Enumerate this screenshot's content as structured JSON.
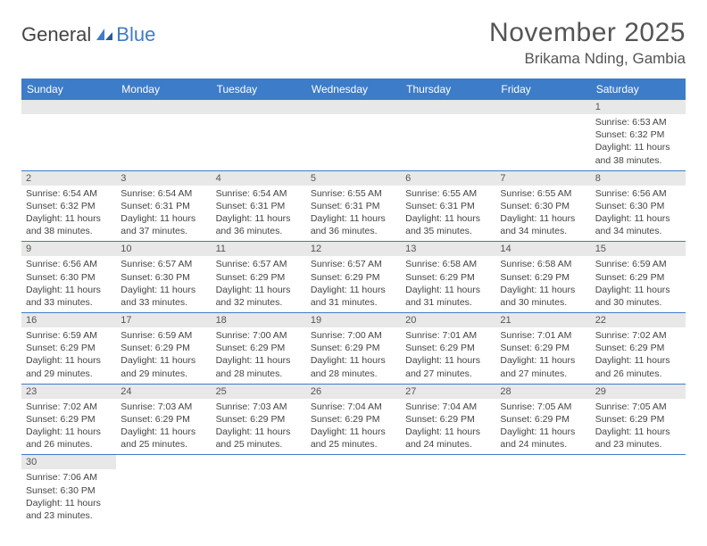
{
  "logo": {
    "part1": "General",
    "part2": "Blue"
  },
  "title": "November 2025",
  "location": "Brikama Nding, Gambia",
  "colors": {
    "header_bg": "#3d7cc9",
    "header_text": "#ffffff",
    "daynum_bg": "#e8e8e8",
    "cell_border": "#3d7cc9",
    "body_text": "#444444"
  },
  "day_headers": [
    "Sunday",
    "Monday",
    "Tuesday",
    "Wednesday",
    "Thursday",
    "Friday",
    "Saturday"
  ],
  "weeks": [
    [
      {
        "n": "",
        "sr": "",
        "ss": "",
        "dl": ""
      },
      {
        "n": "",
        "sr": "",
        "ss": "",
        "dl": ""
      },
      {
        "n": "",
        "sr": "",
        "ss": "",
        "dl": ""
      },
      {
        "n": "",
        "sr": "",
        "ss": "",
        "dl": ""
      },
      {
        "n": "",
        "sr": "",
        "ss": "",
        "dl": ""
      },
      {
        "n": "",
        "sr": "",
        "ss": "",
        "dl": ""
      },
      {
        "n": "1",
        "sr": "Sunrise: 6:53 AM",
        "ss": "Sunset: 6:32 PM",
        "dl": "Daylight: 11 hours and 38 minutes."
      }
    ],
    [
      {
        "n": "2",
        "sr": "Sunrise: 6:54 AM",
        "ss": "Sunset: 6:32 PM",
        "dl": "Daylight: 11 hours and 38 minutes."
      },
      {
        "n": "3",
        "sr": "Sunrise: 6:54 AM",
        "ss": "Sunset: 6:31 PM",
        "dl": "Daylight: 11 hours and 37 minutes."
      },
      {
        "n": "4",
        "sr": "Sunrise: 6:54 AM",
        "ss": "Sunset: 6:31 PM",
        "dl": "Daylight: 11 hours and 36 minutes."
      },
      {
        "n": "5",
        "sr": "Sunrise: 6:55 AM",
        "ss": "Sunset: 6:31 PM",
        "dl": "Daylight: 11 hours and 36 minutes."
      },
      {
        "n": "6",
        "sr": "Sunrise: 6:55 AM",
        "ss": "Sunset: 6:31 PM",
        "dl": "Daylight: 11 hours and 35 minutes."
      },
      {
        "n": "7",
        "sr": "Sunrise: 6:55 AM",
        "ss": "Sunset: 6:30 PM",
        "dl": "Daylight: 11 hours and 34 minutes."
      },
      {
        "n": "8",
        "sr": "Sunrise: 6:56 AM",
        "ss": "Sunset: 6:30 PM",
        "dl": "Daylight: 11 hours and 34 minutes."
      }
    ],
    [
      {
        "n": "9",
        "sr": "Sunrise: 6:56 AM",
        "ss": "Sunset: 6:30 PM",
        "dl": "Daylight: 11 hours and 33 minutes."
      },
      {
        "n": "10",
        "sr": "Sunrise: 6:57 AM",
        "ss": "Sunset: 6:30 PM",
        "dl": "Daylight: 11 hours and 33 minutes."
      },
      {
        "n": "11",
        "sr": "Sunrise: 6:57 AM",
        "ss": "Sunset: 6:29 PM",
        "dl": "Daylight: 11 hours and 32 minutes."
      },
      {
        "n": "12",
        "sr": "Sunrise: 6:57 AM",
        "ss": "Sunset: 6:29 PM",
        "dl": "Daylight: 11 hours and 31 minutes."
      },
      {
        "n": "13",
        "sr": "Sunrise: 6:58 AM",
        "ss": "Sunset: 6:29 PM",
        "dl": "Daylight: 11 hours and 31 minutes."
      },
      {
        "n": "14",
        "sr": "Sunrise: 6:58 AM",
        "ss": "Sunset: 6:29 PM",
        "dl": "Daylight: 11 hours and 30 minutes."
      },
      {
        "n": "15",
        "sr": "Sunrise: 6:59 AM",
        "ss": "Sunset: 6:29 PM",
        "dl": "Daylight: 11 hours and 30 minutes."
      }
    ],
    [
      {
        "n": "16",
        "sr": "Sunrise: 6:59 AM",
        "ss": "Sunset: 6:29 PM",
        "dl": "Daylight: 11 hours and 29 minutes."
      },
      {
        "n": "17",
        "sr": "Sunrise: 6:59 AM",
        "ss": "Sunset: 6:29 PM",
        "dl": "Daylight: 11 hours and 29 minutes."
      },
      {
        "n": "18",
        "sr": "Sunrise: 7:00 AM",
        "ss": "Sunset: 6:29 PM",
        "dl": "Daylight: 11 hours and 28 minutes."
      },
      {
        "n": "19",
        "sr": "Sunrise: 7:00 AM",
        "ss": "Sunset: 6:29 PM",
        "dl": "Daylight: 11 hours and 28 minutes."
      },
      {
        "n": "20",
        "sr": "Sunrise: 7:01 AM",
        "ss": "Sunset: 6:29 PM",
        "dl": "Daylight: 11 hours and 27 minutes."
      },
      {
        "n": "21",
        "sr": "Sunrise: 7:01 AM",
        "ss": "Sunset: 6:29 PM",
        "dl": "Daylight: 11 hours and 27 minutes."
      },
      {
        "n": "22",
        "sr": "Sunrise: 7:02 AM",
        "ss": "Sunset: 6:29 PM",
        "dl": "Daylight: 11 hours and 26 minutes."
      }
    ],
    [
      {
        "n": "23",
        "sr": "Sunrise: 7:02 AM",
        "ss": "Sunset: 6:29 PM",
        "dl": "Daylight: 11 hours and 26 minutes."
      },
      {
        "n": "24",
        "sr": "Sunrise: 7:03 AM",
        "ss": "Sunset: 6:29 PM",
        "dl": "Daylight: 11 hours and 25 minutes."
      },
      {
        "n": "25",
        "sr": "Sunrise: 7:03 AM",
        "ss": "Sunset: 6:29 PM",
        "dl": "Daylight: 11 hours and 25 minutes."
      },
      {
        "n": "26",
        "sr": "Sunrise: 7:04 AM",
        "ss": "Sunset: 6:29 PM",
        "dl": "Daylight: 11 hours and 25 minutes."
      },
      {
        "n": "27",
        "sr": "Sunrise: 7:04 AM",
        "ss": "Sunset: 6:29 PM",
        "dl": "Daylight: 11 hours and 24 minutes."
      },
      {
        "n": "28",
        "sr": "Sunrise: 7:05 AM",
        "ss": "Sunset: 6:29 PM",
        "dl": "Daylight: 11 hours and 24 minutes."
      },
      {
        "n": "29",
        "sr": "Sunrise: 7:05 AM",
        "ss": "Sunset: 6:29 PM",
        "dl": "Daylight: 11 hours and 23 minutes."
      }
    ],
    [
      {
        "n": "30",
        "sr": "Sunrise: 7:06 AM",
        "ss": "Sunset: 6:30 PM",
        "dl": "Daylight: 11 hours and 23 minutes."
      },
      {
        "n": "",
        "sr": "",
        "ss": "",
        "dl": ""
      },
      {
        "n": "",
        "sr": "",
        "ss": "",
        "dl": ""
      },
      {
        "n": "",
        "sr": "",
        "ss": "",
        "dl": ""
      },
      {
        "n": "",
        "sr": "",
        "ss": "",
        "dl": ""
      },
      {
        "n": "",
        "sr": "",
        "ss": "",
        "dl": ""
      },
      {
        "n": "",
        "sr": "",
        "ss": "",
        "dl": ""
      }
    ]
  ]
}
